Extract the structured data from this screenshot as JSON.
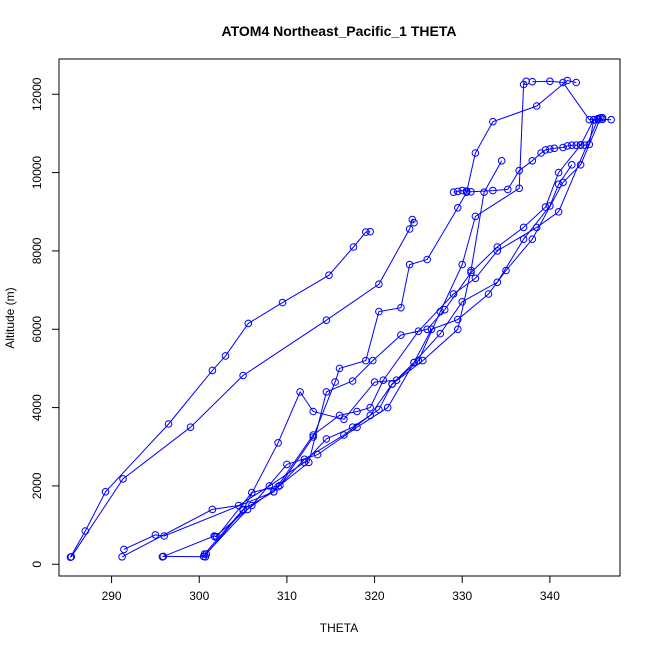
{
  "chart_data": {
    "type": "scatter",
    "title": "ATOM4 Northeast_Pacific_1 THETA",
    "xlabel": "THETA",
    "ylabel": "Altitude (m)",
    "xlim": [
      284,
      348
    ],
    "ylim": [
      -300,
      12900
    ],
    "x_ticks": [
      290,
      300,
      310,
      320,
      330,
      340
    ],
    "x_tick_labels": [
      "290",
      "300",
      "310",
      "320",
      "330",
      "340"
    ],
    "y_ticks": [
      0,
      2000,
      4000,
      6000,
      8000,
      10000,
      12000
    ],
    "y_tick_labels": [
      "0",
      "2000",
      "4000",
      "6000",
      "8000",
      "10000",
      "12000"
    ],
    "grid": false,
    "legend": "none",
    "colors": {
      "series": "#0000ff",
      "axes": "#000000",
      "background": "#ffffff"
    },
    "markers": "open-circle",
    "lines": true,
    "series": [
      {
        "x": [
          285.3,
          287.0,
          289.3,
          296.5,
          301.5,
          303.0,
          305.6,
          309.5,
          314.8,
          317.6,
          319.0,
          319.5
        ],
        "y": [
          180,
          850,
          1850,
          3580,
          4950,
          5320,
          6150,
          6680,
          7380,
          8100,
          8480,
          8490
        ]
      },
      {
        "x": [
          285.4,
          291.3,
          299.0,
          305.0,
          314.5,
          320.5,
          324.0,
          324.3,
          324.5
        ],
        "y": [
          190,
          2180,
          3500,
          4820,
          6230,
          7150,
          8560,
          8800,
          8720
        ]
      },
      {
        "x": [
          291.2,
          301.5,
          304.5,
          308.0,
          312.0,
          314.5,
          317.5,
          320.5,
          322.0,
          325.5,
          329.5,
          331.0,
          332.5,
          334.5
        ],
        "y": [
          190,
          1400,
          1500,
          2000,
          2600,
          3200,
          3500,
          3950,
          4600,
          5200,
          6000,
          7500,
          9500,
          10300
        ]
      },
      {
        "x": [
          291.4,
          295.0,
          296.0,
          308.5,
          312.0,
          316.5,
          319.5,
          322.0,
          324.5,
          327.5,
          330.0,
          334.0,
          337.0,
          340.0,
          341.0,
          342.5
        ],
        "y": [
          380,
          750,
          720,
          1850,
          2680,
          3300,
          3800,
          4600,
          5150,
          5890,
          6700,
          7200,
          8300,
          9150,
          9700,
          10200
        ]
      },
      {
        "x": [
          295.8,
          301.7,
          302.0,
          306.0,
          309.2,
          313.0,
          315.5,
          316.0,
          319.0,
          320.5,
          323.0,
          324.0,
          326.0,
          329.5,
          330.5,
          331.5,
          333.5,
          338.5,
          342.0,
          343.0
        ],
        "y": [
          190,
          720,
          700,
          1830,
          2010,
          3250,
          4650,
          5000,
          5200,
          6450,
          6550,
          7650,
          7780,
          9100,
          9500,
          10500,
          11300,
          11700,
          12350,
          12300
        ]
      },
      {
        "x": [
          295.9,
          300.7,
          300.8,
          305.0,
          309.0,
          311.5,
          313.0,
          316.5,
          320.0,
          322.5,
          325.0,
          327.5,
          330.0,
          331.5,
          336.5,
          337.0,
          337.3
        ],
        "y": [
          200,
          190,
          260,
          1380,
          3100,
          4400,
          3900,
          3700,
          4650,
          4700,
          5200,
          6450,
          7650,
          8880,
          9600,
          12250,
          12330
        ]
      },
      {
        "x": [
          300.5,
          305.5,
          309.0,
          312.5,
          314.5,
          317.5,
          319.8,
          323.0,
          326.0,
          328.0,
          331.0,
          334.0,
          337.0,
          339.5,
          341.0,
          343.5,
          345.0
        ],
        "y": [
          200,
          1400,
          1980,
          2600,
          4400,
          4680,
          5200,
          5850,
          6000,
          6500,
          7450,
          8100,
          8600,
          9120,
          10000,
          10700,
          11350
        ]
      },
      {
        "x": [
          300.6,
          305.0,
          308.5,
          313.0,
          316.0,
          318.0,
          319.5,
          321.0,
          325.0,
          329.0,
          331.5,
          334.0,
          338.5,
          341.0,
          345.5
        ],
        "y": [
          260,
          1400,
          1850,
          3300,
          3800,
          3900,
          4000,
          4700,
          5950,
          6900,
          7300,
          8000,
          8600,
          9000,
          11370
        ]
      },
      {
        "x": [
          301.8,
          306.0,
          310.0,
          313.5,
          318.0,
          321.5,
          324.5,
          326.5,
          329.5,
          333.0,
          335.0,
          338.0,
          341.5,
          343.5,
          345.8
        ],
        "y": [
          700,
          1500,
          2550,
          2800,
          3500,
          4000,
          5150,
          6000,
          6250,
          6900,
          7500,
          8300,
          9750,
          10200,
          11400
        ]
      },
      {
        "x": [
          329.0,
          329.5,
          330.0,
          330.5,
          331.0,
          333.5,
          335.2,
          336.5,
          338.0,
          339.0,
          339.5,
          340.0,
          340.5,
          341.5,
          342.0,
          342.5,
          343.0,
          343.5,
          344.0,
          344.5,
          345.0,
          345.5,
          346.0,
          347.0
        ],
        "y": [
          9500,
          9520,
          9540,
          9530,
          9510,
          9540,
          9570,
          10050,
          10300,
          10500,
          10580,
          10600,
          10620,
          10640,
          10680,
          10700,
          10700,
          10710,
          10700,
          10720,
          11340,
          11350,
          11360,
          11350
        ]
      },
      {
        "x": [
          338.0,
          340.0,
          341.5,
          344.5,
          345.5,
          346.0
        ],
        "y": [
          12320,
          12330,
          12300,
          11350,
          11380,
          11400
        ]
      }
    ]
  }
}
